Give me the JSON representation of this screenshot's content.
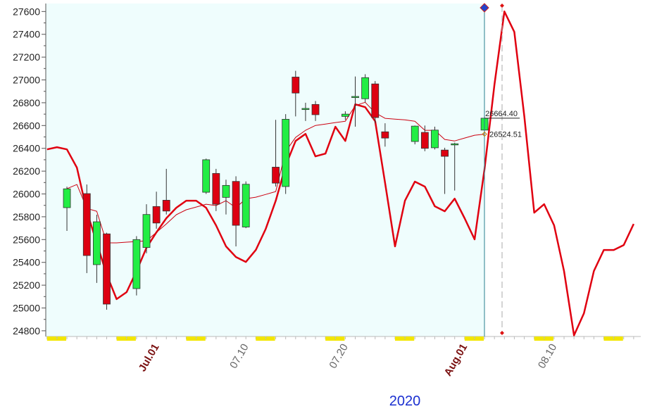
{
  "chart_data": {
    "type": "candlestick",
    "year_label": "2020",
    "categories": [
      null,
      null,
      null,
      null,
      null,
      null,
      null,
      null,
      null,
      null,
      null,
      "Jul.01",
      null,
      null,
      null,
      null,
      null,
      null,
      null,
      null,
      "07.10",
      null,
      null,
      null,
      null,
      null,
      null,
      null,
      null,
      null,
      "07.20",
      null,
      null,
      null,
      null,
      null,
      null,
      null,
      null,
      null,
      null,
      null,
      "Aug.01",
      null,
      null,
      null,
      null,
      null,
      null,
      null,
      null,
      "08.10",
      null,
      null,
      null,
      null,
      null,
      null,
      null,
      null
    ],
    "ylim": [
      24750,
      27670
    ],
    "yticks": [
      24800,
      25000,
      25200,
      25400,
      25600,
      25800,
      26000,
      26200,
      26400,
      26600,
      26800,
      27000,
      27200,
      27400,
      27600
    ],
    "up_color": "#22ee44",
    "down_color": "#dd0011",
    "ohlc": {
      "open": [
        null,
        null,
        25880,
        null,
        26003,
        25380,
        25650,
        null,
        null,
        25170,
        25530,
        25890,
        25945,
        null,
        null,
        null,
        26015,
        26180,
        25970,
        26110,
        25710,
        null,
        null,
        26235,
        26065,
        27025,
        26740,
        26785,
        null,
        null,
        26680,
        26845,
        26835,
        26965,
        26545,
        null,
        null,
        26460,
        26540,
        26405,
        26385,
        26430,
        null,
        null,
        26560,
        null,
        null,
        null,
        null,
        null,
        null,
        null,
        null,
        null,
        null,
        null,
        null,
        null,
        null,
        null
      ],
      "high": [
        null,
        null,
        26064,
        null,
        26083,
        25818,
        25660,
        null,
        null,
        25630,
        25910,
        26020,
        26220,
        null,
        null,
        null,
        26310,
        26220,
        26125,
        26155,
        26110,
        null,
        null,
        26650,
        26700,
        27080,
        26800,
        26815,
        null,
        null,
        26725,
        27030,
        27050,
        26990,
        26620,
        null,
        null,
        26600,
        26600,
        26590,
        26405,
        26450,
        null,
        null,
        26680,
        null,
        null,
        null,
        null,
        null,
        null,
        null,
        null,
        null,
        null,
        null,
        null,
        null,
        null,
        null
      ],
      "low": [
        null,
        null,
        25676,
        null,
        25306,
        25220,
        24985,
        null,
        null,
        25110,
        25480,
        25695,
        25820,
        null,
        null,
        null,
        26000,
        25850,
        25820,
        25540,
        25700,
        null,
        null,
        26065,
        26000,
        26680,
        26640,
        26640,
        null,
        null,
        26650,
        26590,
        26805,
        26620,
        26415,
        null,
        null,
        26435,
        26375,
        26390,
        26000,
        26030,
        null,
        null,
        26525,
        null,
        null,
        null,
        null,
        null,
        null,
        null,
        null,
        null,
        null,
        null,
        null,
        null,
        null,
        null
      ],
      "close": [
        null,
        null,
        26045,
        null,
        25460,
        25756,
        25034,
        null,
        null,
        25600,
        25820,
        25745,
        25850,
        null,
        null,
        null,
        26300,
        25910,
        26075,
        25725,
        26085,
        null,
        null,
        26095,
        26655,
        26885,
        26750,
        26695,
        null,
        null,
        26700,
        26855,
        27020,
        26670,
        26490,
        null,
        null,
        26595,
        26400,
        26560,
        26330,
        26440,
        null,
        null,
        26664.4,
        null,
        null,
        null,
        null,
        null,
        null,
        null,
        null,
        null,
        null,
        null,
        null,
        null,
        null,
        null
      ],
      "value_labels": [
        null,
        null,
        null,
        null,
        null,
        null,
        null,
        null,
        null,
        null,
        null,
        null,
        null,
        null,
        null,
        null,
        null,
        null,
        null,
        null,
        null,
        null,
        null,
        null,
        null,
        null,
        null,
        null,
        null,
        null,
        null,
        null,
        null,
        null,
        null,
        null,
        null,
        null,
        null,
        null,
        null,
        null,
        null,
        null,
        "26664.40",
        null,
        null,
        null,
        null,
        null,
        null,
        null,
        null,
        null,
        null,
        null,
        null,
        null,
        null,
        null
      ]
    },
    "lines": [
      {
        "color": "#e00010",
        "width": 2.5,
        "values": [
          26391,
          26410,
          26391,
          26231,
          25848,
          25571,
          25293,
          25078,
          25139,
          25324,
          25528,
          25663,
          25787,
          25879,
          25941,
          25941,
          25879,
          25725,
          25540,
          25447,
          25404,
          25509,
          25694,
          25941,
          26249,
          26465,
          26527,
          26330,
          26354,
          26589,
          26465,
          26786,
          26761,
          26638,
          26095,
          25540,
          25941,
          26108,
          26064,
          25892,
          25848,
          25959,
          25787,
          25602,
          26218,
          26959,
          27600,
          27421,
          26681,
          25836,
          25910,
          25725,
          25324,
          24760,
          24954,
          25324,
          25509,
          25509,
          25552,
          25737
        ]
      },
      {
        "color": "#cc0010",
        "width": 1,
        "values": [
          null,
          null,
          26046,
          26083,
          25873,
          25848,
          25571,
          25571,
          25577,
          25583,
          25589,
          25663,
          25737,
          25818,
          25861,
          25885,
          25910,
          25898,
          25941,
          25879,
          25959,
          25972,
          25996,
          26021,
          26373,
          26496,
          26558,
          26601,
          26613,
          26626,
          26638,
          26774,
          26804,
          26712,
          26663,
          26656,
          26650,
          26638,
          26558,
          26558,
          26478,
          26465,
          26490,
          26515,
          26524.51,
          null,
          null,
          null,
          null,
          null,
          null,
          null,
          null,
          null,
          null,
          null,
          null,
          null,
          null,
          null
        ],
        "value_labels": [
          null,
          null,
          null,
          null,
          null,
          null,
          null,
          null,
          null,
          null,
          null,
          null,
          null,
          null,
          null,
          null,
          null,
          null,
          null,
          null,
          null,
          null,
          null,
          null,
          null,
          null,
          null,
          null,
          null,
          null,
          null,
          null,
          null,
          null,
          null,
          null,
          null,
          null,
          null,
          null,
          null,
          null,
          null,
          null,
          "26524.51",
          null,
          null,
          null,
          null,
          null,
          null,
          null,
          null,
          null,
          null,
          null,
          null,
          null,
          null,
          null
        ]
      }
    ]
  }
}
